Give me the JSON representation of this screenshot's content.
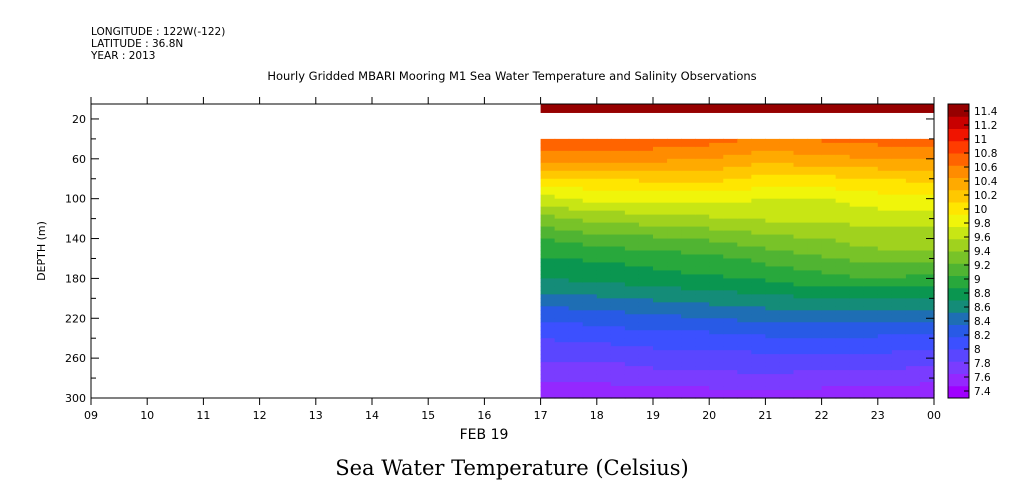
{
  "header": {
    "longitude": "LONGITUDE : 122W(-122)",
    "latitude": "LATITUDE : 36.8N",
    "year": "YEAR : 2013"
  },
  "chart_data": {
    "type": "heatmap",
    "title": "Hourly Gridded MBARI Mooring M1 Sea Water Temperature and Salinity Observations",
    "bottom_title": "Sea Water Temperature (Celsius)",
    "xlabel": "FEB 19",
    "ylabel": "DEPTH (m)",
    "x_ticks": [
      "09",
      "10",
      "11",
      "12",
      "13",
      "14",
      "15",
      "16",
      "17",
      "18",
      "19",
      "20",
      "21",
      "22",
      "23",
      "00"
    ],
    "x_range_hours": [
      9,
      24
    ],
    "y_ticks": [
      20,
      60,
      100,
      140,
      180,
      220,
      260,
      300
    ],
    "ylim": [
      300,
      5
    ],
    "y_inverted": true,
    "data_start_hour": 17,
    "colorbar": {
      "ticks": [
        "11.4",
        "11.2",
        "11",
        "10.8",
        "10.6",
        "10.4",
        "10.2",
        "10",
        "9.8",
        "9.6",
        "9.4",
        "9.2",
        "9",
        "8.8",
        "8.6",
        "8.4",
        "8.2",
        "8",
        "7.8",
        "7.6",
        "7.4"
      ],
      "range": [
        7.3,
        11.5
      ],
      "colors": [
        "#a000ff",
        "#9428ff",
        "#7a3cff",
        "#5a46ff",
        "#3c50ff",
        "#285ae6",
        "#1e6eb4",
        "#148c78",
        "#0a9650",
        "#28a83c",
        "#50b432",
        "#78c328",
        "#a0d21e",
        "#c8e614",
        "#f0f50a",
        "#ffe600",
        "#ffc800",
        "#ffaa00",
        "#ff8c00",
        "#ff6400",
        "#ff3c00",
        "#f01400",
        "#c80000",
        "#960000"
      ]
    },
    "profile_depths": [
      10,
      40,
      60,
      80,
      100,
      120,
      140,
      160,
      180,
      200,
      220,
      240,
      260,
      280,
      300
    ],
    "columns": [
      {
        "hour": 17,
        "temps": [
          11.4,
          null,
          10.5,
          10.05,
          9.7,
          9.35,
          9.05,
          8.85,
          8.7,
          8.45,
          8.2,
          8.0,
          7.85,
          7.7,
          7.5
        ]
      },
      {
        "hour": 18,
        "temps": [
          11.4,
          null,
          10.5,
          10.1,
          9.8,
          9.45,
          9.15,
          8.9,
          8.75,
          8.5,
          8.25,
          8.05,
          7.85,
          7.7,
          7.5
        ]
      },
      {
        "hour": 19,
        "temps": [
          11.4,
          null,
          10.5,
          10.15,
          9.8,
          9.5,
          9.2,
          8.95,
          8.8,
          8.55,
          8.3,
          8.1,
          7.9,
          7.75,
          7.5
        ]
      },
      {
        "hour": 20,
        "temps": [
          11.4,
          null,
          10.45,
          10.15,
          9.8,
          9.55,
          9.25,
          9.0,
          8.85,
          8.6,
          8.35,
          8.1,
          7.9,
          7.75,
          7.55
        ]
      },
      {
        "hour": 21,
        "temps": [
          11.4,
          null,
          10.35,
          10.05,
          9.75,
          9.6,
          9.35,
          9.1,
          8.9,
          8.65,
          8.4,
          8.15,
          7.95,
          7.8,
          7.55
        ]
      },
      {
        "hour": 22,
        "temps": [
          11.4,
          null,
          10.4,
          10.05,
          9.75,
          9.6,
          9.4,
          9.2,
          9.0,
          8.7,
          8.4,
          8.15,
          7.95,
          7.75,
          7.55
        ]
      },
      {
        "hour": 23,
        "temps": [
          11.4,
          null,
          10.45,
          10.1,
          9.85,
          9.65,
          9.5,
          9.3,
          9.05,
          8.7,
          8.4,
          8.15,
          7.95,
          7.75,
          7.5
        ]
      },
      {
        "hour": 24,
        "temps": [
          11.4,
          null,
          10.45,
          10.15,
          9.85,
          9.65,
          9.5,
          9.3,
          9.0,
          8.7,
          8.4,
          8.1,
          7.9,
          7.7,
          7.5
        ]
      }
    ]
  }
}
